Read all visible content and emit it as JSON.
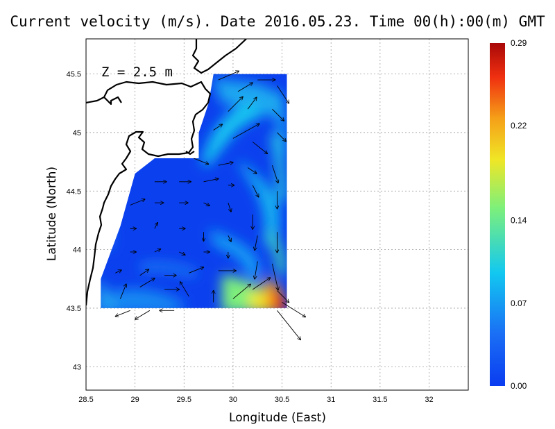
{
  "title": "Current velocity (m/s). Date 2016.05.23. Time 00(h):00(m) GMT",
  "xlabel": "Longitude (East)",
  "ylabel": "Latitude (North)",
  "annotation": "Z = 2.5 m",
  "x_ticks": [
    "28.5",
    "29",
    "29.5",
    "30",
    "30.5",
    "31",
    "31.5",
    "32"
  ],
  "y_ticks": [
    "43",
    "43.5",
    "44",
    "44.5",
    "45",
    "45.5"
  ],
  "colorbar": {
    "ticks": [
      "0.00",
      "0.07",
      "0.14",
      "0.22",
      "0.29"
    ],
    "min": 0.0,
    "max": 0.29,
    "colors": [
      "#0a3cf0",
      "#1a6ef5",
      "#12c8f0",
      "#7ef07a",
      "#f0e626",
      "#f5a018",
      "#f03010",
      "#a80808"
    ]
  },
  "chart_data": {
    "type": "heatmap",
    "xlim": [
      28.5,
      32.4
    ],
    "ylim": [
      42.8,
      45.8
    ],
    "grid": true,
    "colorbar_range": [
      0.0,
      0.29
    ],
    "domain_polygon": [
      [
        29.8,
        45.5
      ],
      [
        30.55,
        45.5
      ],
      [
        30.55,
        43.5
      ],
      [
        28.65,
        43.5
      ],
      [
        28.65,
        43.75
      ],
      [
        28.85,
        44.2
      ],
      [
        29.0,
        44.65
      ],
      [
        29.2,
        44.78
      ],
      [
        29.65,
        44.78
      ],
      [
        29.65,
        45.0
      ],
      [
        29.75,
        45.25
      ],
      [
        29.8,
        45.5
      ]
    ],
    "vectors": [
      {
        "lon": 29.85,
        "lat": 45.45,
        "u": 0.07,
        "v": 0.03
      },
      {
        "lon": 30.05,
        "lat": 45.35,
        "u": 0.05,
        "v": 0.03
      },
      {
        "lon": 30.25,
        "lat": 45.45,
        "u": 0.06,
        "v": 0.0
      },
      {
        "lon": 30.45,
        "lat": 45.4,
        "u": 0.04,
        "v": -0.06
      },
      {
        "lon": 29.95,
        "lat": 45.18,
        "u": 0.05,
        "v": 0.05
      },
      {
        "lon": 30.15,
        "lat": 45.2,
        "u": 0.03,
        "v": 0.04
      },
      {
        "lon": 30.4,
        "lat": 45.2,
        "u": 0.04,
        "v": -0.04
      },
      {
        "lon": 29.8,
        "lat": 45.02,
        "u": 0.03,
        "v": 0.02
      },
      {
        "lon": 30.0,
        "lat": 44.95,
        "u": 0.09,
        "v": 0.05
      },
      {
        "lon": 30.2,
        "lat": 44.92,
        "u": 0.05,
        "v": -0.04
      },
      {
        "lon": 30.45,
        "lat": 45.0,
        "u": 0.03,
        "v": -0.03
      },
      {
        "lon": 29.6,
        "lat": 44.78,
        "u": 0.05,
        "v": -0.02
      },
      {
        "lon": 29.85,
        "lat": 44.72,
        "u": 0.05,
        "v": 0.01
      },
      {
        "lon": 30.15,
        "lat": 44.7,
        "u": 0.03,
        "v": -0.02
      },
      {
        "lon": 30.4,
        "lat": 44.72,
        "u": 0.02,
        "v": -0.06
      },
      {
        "lon": 29.2,
        "lat": 44.58,
        "u": 0.04,
        "v": 0.0
      },
      {
        "lon": 29.45,
        "lat": 44.58,
        "u": 0.04,
        "v": 0.0
      },
      {
        "lon": 29.7,
        "lat": 44.58,
        "u": 0.05,
        "v": 0.01
      },
      {
        "lon": 29.95,
        "lat": 44.55,
        "u": 0.02,
        "v": 0.0
      },
      {
        "lon": 30.2,
        "lat": 44.55,
        "u": 0.02,
        "v": -0.04
      },
      {
        "lon": 30.45,
        "lat": 44.5,
        "u": 0.0,
        "v": -0.06
      },
      {
        "lon": 28.95,
        "lat": 44.38,
        "u": 0.05,
        "v": 0.02
      },
      {
        "lon": 29.2,
        "lat": 44.4,
        "u": 0.03,
        "v": 0.0
      },
      {
        "lon": 29.45,
        "lat": 44.4,
        "u": 0.03,
        "v": 0.0
      },
      {
        "lon": 29.7,
        "lat": 44.4,
        "u": 0.02,
        "v": -0.01
      },
      {
        "lon": 29.95,
        "lat": 44.4,
        "u": 0.01,
        "v": -0.03
      },
      {
        "lon": 30.2,
        "lat": 44.3,
        "u": 0.0,
        "v": -0.05
      },
      {
        "lon": 28.95,
        "lat": 44.18,
        "u": 0.02,
        "v": 0.0
      },
      {
        "lon": 29.2,
        "lat": 44.18,
        "u": 0.01,
        "v": 0.02
      },
      {
        "lon": 29.45,
        "lat": 44.18,
        "u": 0.02,
        "v": 0.0
      },
      {
        "lon": 29.7,
        "lat": 44.15,
        "u": 0.0,
        "v": -0.03
      },
      {
        "lon": 29.95,
        "lat": 44.12,
        "u": 0.01,
        "v": -0.02
      },
      {
        "lon": 30.25,
        "lat": 44.12,
        "u": -0.01,
        "v": -0.05
      },
      {
        "lon": 30.45,
        "lat": 44.15,
        "u": 0.0,
        "v": -0.07
      },
      {
        "lon": 28.95,
        "lat": 43.98,
        "u": 0.02,
        "v": 0.0
      },
      {
        "lon": 29.2,
        "lat": 43.98,
        "u": 0.02,
        "v": 0.01
      },
      {
        "lon": 29.45,
        "lat": 43.98,
        "u": 0.02,
        "v": -0.01
      },
      {
        "lon": 29.7,
        "lat": 43.98,
        "u": 0.02,
        "v": 0.0
      },
      {
        "lon": 29.95,
        "lat": 43.98,
        "u": 0.0,
        "v": -0.02
      },
      {
        "lon": 30.25,
        "lat": 43.9,
        "u": -0.01,
        "v": -0.06
      },
      {
        "lon": 28.8,
        "lat": 43.8,
        "u": 0.02,
        "v": 0.01
      },
      {
        "lon": 29.05,
        "lat": 43.78,
        "u": 0.03,
        "v": 0.02
      },
      {
        "lon": 29.3,
        "lat": 43.78,
        "u": 0.04,
        "v": 0.0
      },
      {
        "lon": 29.55,
        "lat": 43.8,
        "u": 0.05,
        "v": 0.02
      },
      {
        "lon": 29.85,
        "lat": 43.82,
        "u": 0.06,
        "v": 0.0
      },
      {
        "lon": 30.4,
        "lat": 43.88,
        "u": 0.02,
        "v": -0.09
      },
      {
        "lon": 28.85,
        "lat": 43.58,
        "u": 0.02,
        "v": 0.05
      },
      {
        "lon": 29.05,
        "lat": 43.68,
        "u": 0.05,
        "v": 0.03
      },
      {
        "lon": 29.3,
        "lat": 43.66,
        "u": 0.05,
        "v": 0.0
      },
      {
        "lon": 29.55,
        "lat": 43.6,
        "u": -0.03,
        "v": 0.05
      },
      {
        "lon": 29.8,
        "lat": 43.55,
        "u": 0.0,
        "v": 0.04
      },
      {
        "lon": 30.0,
        "lat": 43.58,
        "u": 0.06,
        "v": 0.05
      },
      {
        "lon": 30.2,
        "lat": 43.66,
        "u": 0.06,
        "v": 0.04
      },
      {
        "lon": 30.45,
        "lat": 43.65,
        "u": 0.04,
        "v": -0.04
      },
      {
        "lon": 30.5,
        "lat": 43.55,
        "u": 0.08,
        "v": -0.05
      },
      {
        "lon": 28.95,
        "lat": 43.48,
        "u": -0.05,
        "v": -0.02
      },
      {
        "lon": 29.15,
        "lat": 43.48,
        "u": -0.05,
        "v": -0.03
      },
      {
        "lon": 29.4,
        "lat": 43.48,
        "u": -0.05,
        "v": 0.0
      },
      {
        "lon": 30.45,
        "lat": 43.48,
        "u": 0.08,
        "v": -0.1
      }
    ]
  }
}
